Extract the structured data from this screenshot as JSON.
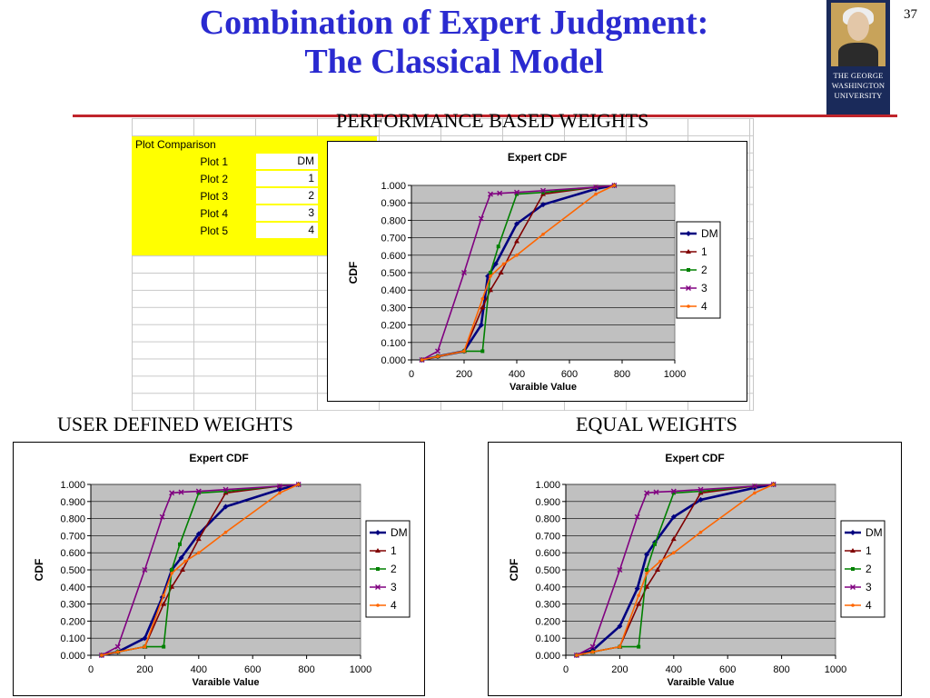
{
  "slide": {
    "title_line1": "Combination of Expert Judgment:",
    "title_line2": "The Classical Model",
    "page_number": "37",
    "logo_text": [
      "THE GEORGE",
      "WASHINGTON",
      "UNIVERSITY"
    ],
    "rule_color": "#c0242b",
    "title_color": "#2a2ad0"
  },
  "sections": {
    "performance": "PERFORMANCE BASED WEIGHTS",
    "user": "USER DEFINED WEIGHTS",
    "equal": "EQUAL WEIGHTS"
  },
  "plot_table": {
    "header": "Plot Comparison",
    "rows": [
      {
        "label": "Plot 1",
        "value": "DM"
      },
      {
        "label": "Plot 2",
        "value": "1"
      },
      {
        "label": "Plot 3",
        "value": "2"
      },
      {
        "label": "Plot 4",
        "value": "3"
      },
      {
        "label": "Plot 5",
        "value": "4"
      }
    ]
  },
  "chart_data": [
    {
      "id": "performance",
      "type": "line",
      "title": "Expert CDF",
      "xlabel": "Varaible Value",
      "ylabel": "CDF",
      "xlim": [
        0,
        1000
      ],
      "ylim": [
        0,
        1
      ],
      "xticks": [
        "0",
        "200",
        "400",
        "600",
        "800",
        "1000"
      ],
      "yticks": [
        "0.000",
        "0.100",
        "0.200",
        "0.300",
        "0.400",
        "0.500",
        "0.600",
        "0.700",
        "0.800",
        "0.900",
        "1.000"
      ],
      "grid": true,
      "legend": "right",
      "plot_bg": "#c0c0c0",
      "series": [
        {
          "name": "DM",
          "color": "#000080",
          "marker": "diamond",
          "x": [
            40,
            100,
            200,
            265,
            290,
            320,
            400,
            500,
            700,
            770
          ],
          "y": [
            0.0,
            0.02,
            0.05,
            0.2,
            0.48,
            0.55,
            0.78,
            0.89,
            0.98,
            1.0
          ]
        },
        {
          "name": "1",
          "color": "#800000",
          "marker": "triangle",
          "x": [
            40,
            100,
            200,
            270,
            300,
            340,
            400,
            500,
            700,
            770
          ],
          "y": [
            0.0,
            0.02,
            0.05,
            0.3,
            0.4,
            0.5,
            0.68,
            0.95,
            0.99,
            1.0
          ]
        },
        {
          "name": "2",
          "color": "#008000",
          "marker": "square",
          "x": [
            40,
            100,
            200,
            270,
            300,
            330,
            400,
            500,
            700,
            770
          ],
          "y": [
            0.0,
            0.02,
            0.05,
            0.05,
            0.5,
            0.65,
            0.95,
            0.96,
            0.99,
            1.0
          ]
        },
        {
          "name": "3",
          "color": "#800080",
          "marker": "cross",
          "x": [
            40,
            100,
            200,
            265,
            300,
            335,
            400,
            500,
            700,
            770
          ],
          "y": [
            0.0,
            0.05,
            0.5,
            0.81,
            0.95,
            0.955,
            0.96,
            0.97,
            0.99,
            1.0
          ]
        },
        {
          "name": "4",
          "color": "#ff6600",
          "marker": "dot",
          "x": [
            40,
            100,
            200,
            270,
            300,
            350,
            400,
            500,
            700,
            770
          ],
          "y": [
            0.0,
            0.02,
            0.05,
            0.35,
            0.48,
            0.55,
            0.6,
            0.72,
            0.95,
            1.0
          ]
        }
      ]
    },
    {
      "id": "user",
      "type": "line",
      "title": "Expert CDF",
      "xlabel": "Varaible Value",
      "ylabel": "CDF",
      "xlim": [
        0,
        1000
      ],
      "ylim": [
        0,
        1
      ],
      "xticks": [
        "0",
        "200",
        "400",
        "600",
        "800",
        "1000"
      ],
      "yticks": [
        "0.000",
        "0.100",
        "0.200",
        "0.300",
        "0.400",
        "0.500",
        "0.600",
        "0.700",
        "0.800",
        "0.900",
        "1.000"
      ],
      "grid": true,
      "legend": "right",
      "plot_bg": "#c0c0c0",
      "series": [
        {
          "name": "DM",
          "color": "#000080",
          "marker": "diamond",
          "x": [
            40,
            100,
            200,
            265,
            300,
            335,
            400,
            500,
            700,
            770
          ],
          "y": [
            0.0,
            0.02,
            0.1,
            0.34,
            0.5,
            0.57,
            0.71,
            0.87,
            0.97,
            1.0
          ]
        },
        {
          "name": "1",
          "color": "#800000",
          "marker": "triangle",
          "x": [
            40,
            100,
            200,
            270,
            300,
            340,
            400,
            500,
            700,
            770
          ],
          "y": [
            0.0,
            0.02,
            0.05,
            0.3,
            0.4,
            0.5,
            0.68,
            0.95,
            0.99,
            1.0
          ]
        },
        {
          "name": "2",
          "color": "#008000",
          "marker": "square",
          "x": [
            40,
            100,
            200,
            270,
            300,
            330,
            400,
            500,
            700,
            770
          ],
          "y": [
            0.0,
            0.02,
            0.05,
            0.05,
            0.5,
            0.65,
            0.95,
            0.96,
            0.99,
            1.0
          ]
        },
        {
          "name": "3",
          "color": "#800080",
          "marker": "cross",
          "x": [
            40,
            100,
            200,
            265,
            300,
            335,
            400,
            500,
            700,
            770
          ],
          "y": [
            0.0,
            0.05,
            0.5,
            0.81,
            0.95,
            0.955,
            0.96,
            0.97,
            0.99,
            1.0
          ]
        },
        {
          "name": "4",
          "color": "#ff6600",
          "marker": "dot",
          "x": [
            40,
            100,
            200,
            270,
            300,
            350,
            400,
            500,
            700,
            770
          ],
          "y": [
            0.0,
            0.02,
            0.05,
            0.35,
            0.48,
            0.55,
            0.6,
            0.72,
            0.95,
            1.0
          ]
        }
      ]
    },
    {
      "id": "equal",
      "type": "line",
      "title": "Expert CDF",
      "xlabel": "Varaible Value",
      "ylabel": "CDF",
      "xlim": [
        0,
        1000
      ],
      "ylim": [
        0,
        1
      ],
      "xticks": [
        "0",
        "200",
        "400",
        "600",
        "800",
        "1000"
      ],
      "yticks": [
        "0.000",
        "0.100",
        "0.200",
        "0.300",
        "0.400",
        "0.500",
        "0.600",
        "0.700",
        "0.800",
        "0.900",
        "1.000"
      ],
      "grid": true,
      "legend": "right",
      "plot_bg": "#c0c0c0",
      "series": [
        {
          "name": "DM",
          "color": "#000080",
          "marker": "diamond",
          "x": [
            40,
            100,
            200,
            265,
            300,
            330,
            400,
            500,
            700,
            770
          ],
          "y": [
            0.0,
            0.03,
            0.17,
            0.39,
            0.59,
            0.66,
            0.81,
            0.91,
            0.98,
            1.0
          ]
        },
        {
          "name": "1",
          "color": "#800000",
          "marker": "triangle",
          "x": [
            40,
            100,
            200,
            270,
            300,
            340,
            400,
            500,
            700,
            770
          ],
          "y": [
            0.0,
            0.02,
            0.05,
            0.3,
            0.4,
            0.5,
            0.68,
            0.95,
            0.99,
            1.0
          ]
        },
        {
          "name": "2",
          "color": "#008000",
          "marker": "square",
          "x": [
            40,
            100,
            200,
            270,
            300,
            330,
            400,
            500,
            700,
            770
          ],
          "y": [
            0.0,
            0.02,
            0.05,
            0.05,
            0.5,
            0.65,
            0.95,
            0.96,
            0.99,
            1.0
          ]
        },
        {
          "name": "3",
          "color": "#800080",
          "marker": "cross",
          "x": [
            40,
            100,
            200,
            265,
            300,
            335,
            400,
            500,
            700,
            770
          ],
          "y": [
            0.0,
            0.05,
            0.5,
            0.81,
            0.95,
            0.955,
            0.96,
            0.97,
            0.99,
            1.0
          ]
        },
        {
          "name": "4",
          "color": "#ff6600",
          "marker": "dot",
          "x": [
            40,
            100,
            200,
            270,
            300,
            350,
            400,
            500,
            700,
            770
          ],
          "y": [
            0.0,
            0.02,
            0.05,
            0.35,
            0.48,
            0.55,
            0.6,
            0.72,
            0.95,
            1.0
          ]
        }
      ]
    }
  ]
}
